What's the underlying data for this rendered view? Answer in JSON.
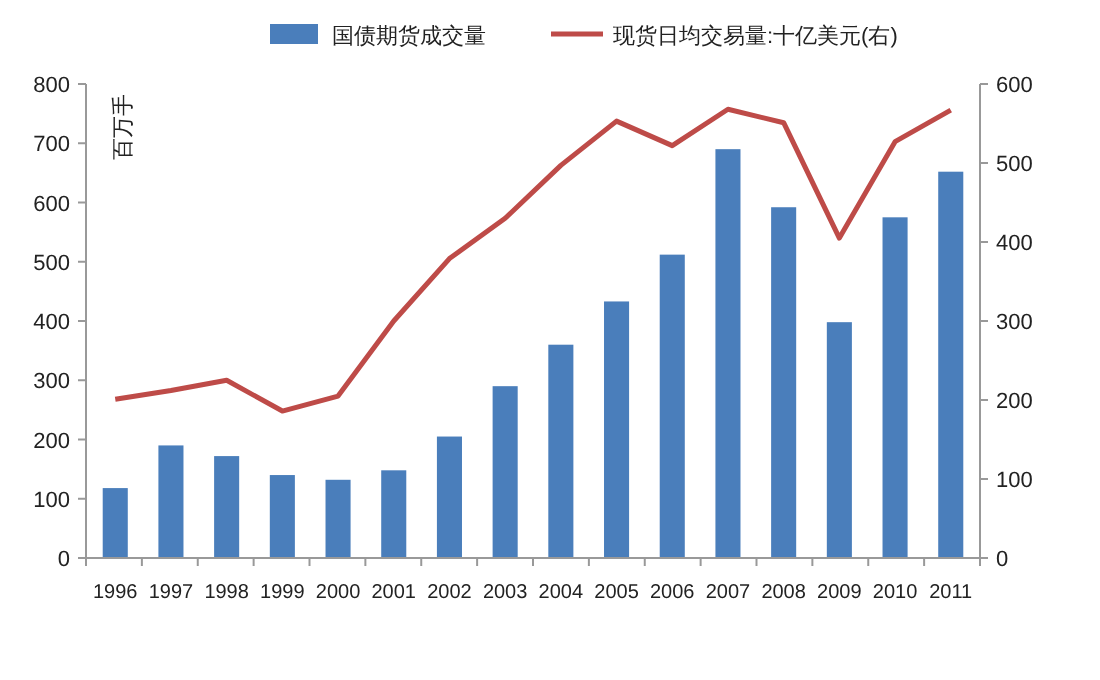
{
  "chart_data": {
    "type": "bar",
    "ylabel": "百万手",
    "categories": [
      "1996",
      "1997",
      "1998",
      "1999",
      "2000",
      "2001",
      "2002",
      "2003",
      "2004",
      "2005",
      "2006",
      "2007",
      "2008",
      "2009",
      "2010",
      "2011"
    ],
    "series": [
      {
        "name": "国债期货成交量",
        "color": "#4a7ebb",
        "values": [
          118,
          190,
          172,
          140,
          132,
          148,
          205,
          290,
          360,
          433,
          512,
          690,
          592,
          398,
          575,
          652
        ]
      },
      {
        "name": "现货日均交易量:十亿美元(右)",
        "type": "line",
        "axis": "y2",
        "color": "#be4b48",
        "values": [
          201,
          212,
          225,
          186,
          205,
          300,
          379,
          430,
          497,
          553,
          522,
          568,
          551,
          405,
          527,
          567
        ]
      }
    ],
    "ylim": [
      0,
      800
    ],
    "yticks": [
      0,
      100,
      200,
      300,
      400,
      500,
      600,
      700,
      800
    ],
    "y2lim": [
      0,
      600
    ],
    "y2ticks": [
      0,
      100,
      200,
      300,
      400,
      500,
      600
    ],
    "grid": false,
    "legend": "top",
    "line_style": "solid",
    "marker": "none"
  }
}
